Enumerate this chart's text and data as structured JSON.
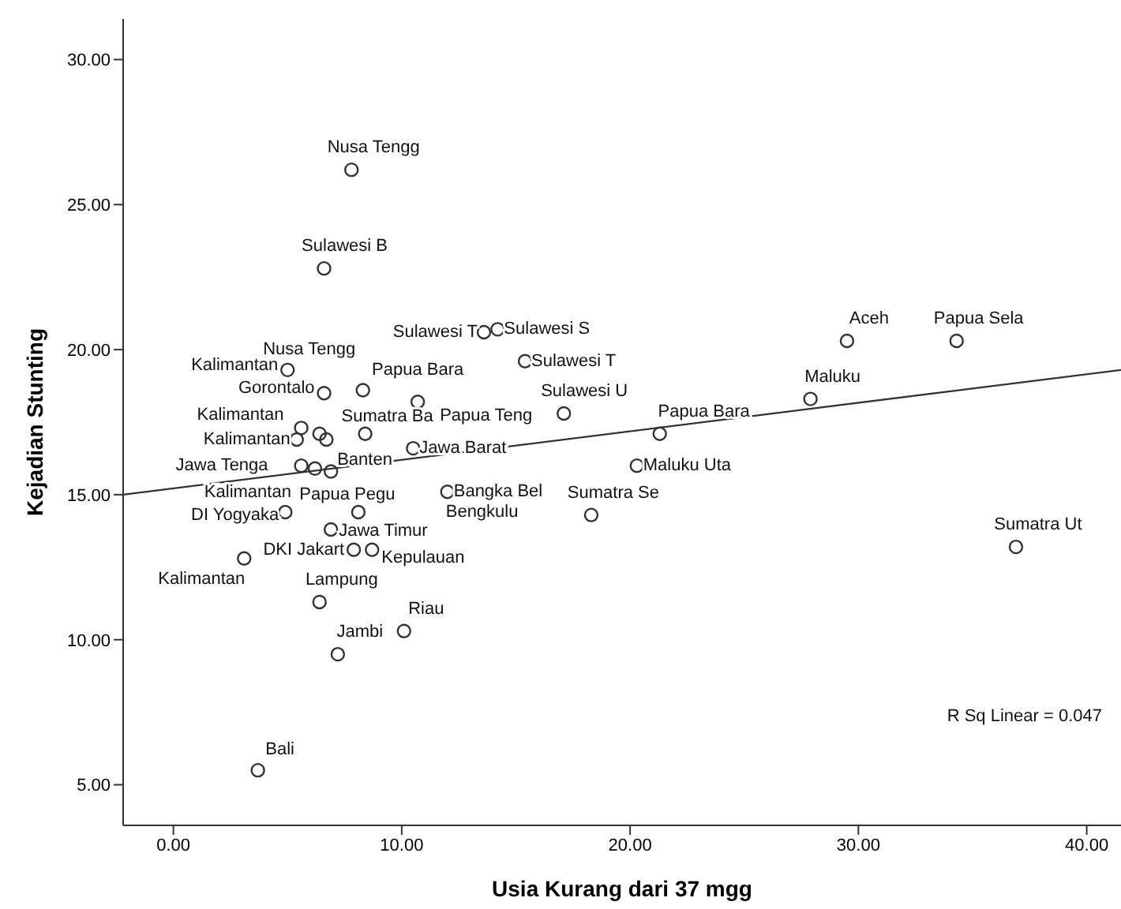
{
  "chart_data": {
    "type": "scatter",
    "xlabel": "Usia Kurang dari 37 mgg",
    "ylabel": "Kejadian Stunting",
    "xlim": [
      -2.2,
      41.5
    ],
    "ylim": [
      3.6,
      31.4
    ],
    "xticks": [
      {
        "value": 0,
        "label": "0.00"
      },
      {
        "value": 10,
        "label": "10.00"
      },
      {
        "value": 20,
        "label": "20.00"
      },
      {
        "value": 30,
        "label": "30.00"
      },
      {
        "value": 40,
        "label": "40.00"
      }
    ],
    "yticks": [
      {
        "value": 5,
        "label": "5.00"
      },
      {
        "value": 10,
        "label": "10.00"
      },
      {
        "value": 15,
        "label": "15.00"
      },
      {
        "value": 20,
        "label": "20.00"
      },
      {
        "value": 25,
        "label": "25.00"
      },
      {
        "value": 30,
        "label": "30.00"
      }
    ],
    "series": [
      {
        "marker": "circle",
        "color": "#333333",
        "x": [
          7.8,
          6.6,
          13.6,
          14.2,
          15.4,
          29.5,
          34.3,
          5.0,
          6.6,
          8.3,
          10.7,
          17.1,
          21.3,
          27.9,
          5.6,
          6.4,
          6.7,
          5.4,
          8.4,
          10.5,
          5.6,
          6.2,
          6.9,
          20.3,
          12.0,
          4.9,
          8.1,
          18.3,
          6.9,
          7.9,
          8.7,
          3.1,
          36.9,
          6.4,
          10.1,
          7.2,
          3.7
        ],
        "values": [
          26.2,
          22.8,
          20.6,
          20.7,
          19.6,
          20.3,
          20.3,
          19.3,
          18.5,
          18.6,
          18.2,
          17.8,
          17.1,
          18.3,
          17.3,
          17.1,
          16.9,
          16.9,
          17.1,
          16.6,
          16.0,
          15.9,
          15.8,
          16.0,
          15.1,
          14.4,
          14.4,
          14.3,
          13.8,
          13.1,
          13.1,
          12.8,
          13.2,
          11.3,
          10.3,
          9.5,
          5.5
        ]
      },
      {
        "type": "line",
        "color": "#333333",
        "x": [
          -2.2,
          41.5
        ],
        "values": [
          15.0,
          19.3
        ]
      }
    ],
    "annotations": [
      {
        "text": "Nusa Tengg",
        "x": 7.8,
        "y": 26.2
      },
      {
        "text": "Sulawesi B",
        "x": 6.6,
        "y": 22.8
      },
      {
        "text": "Sulawesi T",
        "x": 13.6,
        "y": 20.6
      },
      {
        "text": "Sulawesi S",
        "x": 14.2,
        "y": 20.7
      },
      {
        "text": "Sulawesi T",
        "x": 15.4,
        "y": 19.6
      },
      {
        "text": "Aceh",
        "x": 29.5,
        "y": 20.3
      },
      {
        "text": "Papua Sela",
        "x": 34.3,
        "y": 20.3
      },
      {
        "text": "Kalimantan",
        "x": 5.0,
        "y": 19.3
      },
      {
        "text": "Gorontalo",
        "x": 6.6,
        "y": 18.5
      },
      {
        "text": "Nusa Tengg",
        "x": 8.3,
        "y": 18.6
      },
      {
        "text": "Papua Bara",
        "x": 10.7,
        "y": 18.2
      },
      {
        "text": "Sulawesi U",
        "x": 17.1,
        "y": 17.8
      },
      {
        "text": "Papua Bara",
        "x": 21.3,
        "y": 17.1
      },
      {
        "text": "Maluku",
        "x": 27.9,
        "y": 18.3
      },
      {
        "text": "Kalimantan",
        "x": 5.6,
        "y": 17.3
      },
      {
        "text": "Papua Teng",
        "x": 10.7,
        "y": 18.2
      },
      {
        "text": "Kalimantan",
        "x": 5.4,
        "y": 16.9
      },
      {
        "text": "Sumatra Ba",
        "x": 8.4,
        "y": 17.1
      },
      {
        "text": "Jawa Barat",
        "x": 10.5,
        "y": 16.6
      },
      {
        "text": "Jawa Tenga",
        "x": 5.6,
        "y": 16.0
      },
      {
        "text": "Kalimantan",
        "x": 6.2,
        "y": 15.9
      },
      {
        "text": "Banten",
        "x": 6.9,
        "y": 15.8
      },
      {
        "text": "Maluku Uta",
        "x": 20.3,
        "y": 16.0
      },
      {
        "text": "Bangka Bel",
        "x": 12.0,
        "y": 15.1
      },
      {
        "text": "DI Yogyaka",
        "x": 4.9,
        "y": 14.4
      },
      {
        "text": "Papua Pegu",
        "x": 8.1,
        "y": 14.4
      },
      {
        "text": "Sumatra Se",
        "x": 18.3,
        "y": 14.3
      },
      {
        "text": "Jawa Timur",
        "x": 6.9,
        "y": 13.8
      },
      {
        "text": "DKI Jakart",
        "x": 7.9,
        "y": 13.1
      },
      {
        "text": "Kepulauan",
        "x": 8.7,
        "y": 13.1
      },
      {
        "text": "Kalimantan",
        "x": 3.1,
        "y": 12.8
      },
      {
        "text": "Sumatra Ut",
        "x": 36.9,
        "y": 13.2
      },
      {
        "text": "Lampung",
        "x": 6.4,
        "y": 11.3
      },
      {
        "text": "Riau",
        "x": 10.1,
        "y": 10.3
      },
      {
        "text": "Jambi",
        "x": 7.2,
        "y": 9.5
      },
      {
        "text": "Bali",
        "x": 3.7,
        "y": 5.5
      },
      {
        "text": "Bengkulu",
        "x": 12.0,
        "y": 15.1
      },
      "R Sq Linear = 0.047"
    ]
  }
}
